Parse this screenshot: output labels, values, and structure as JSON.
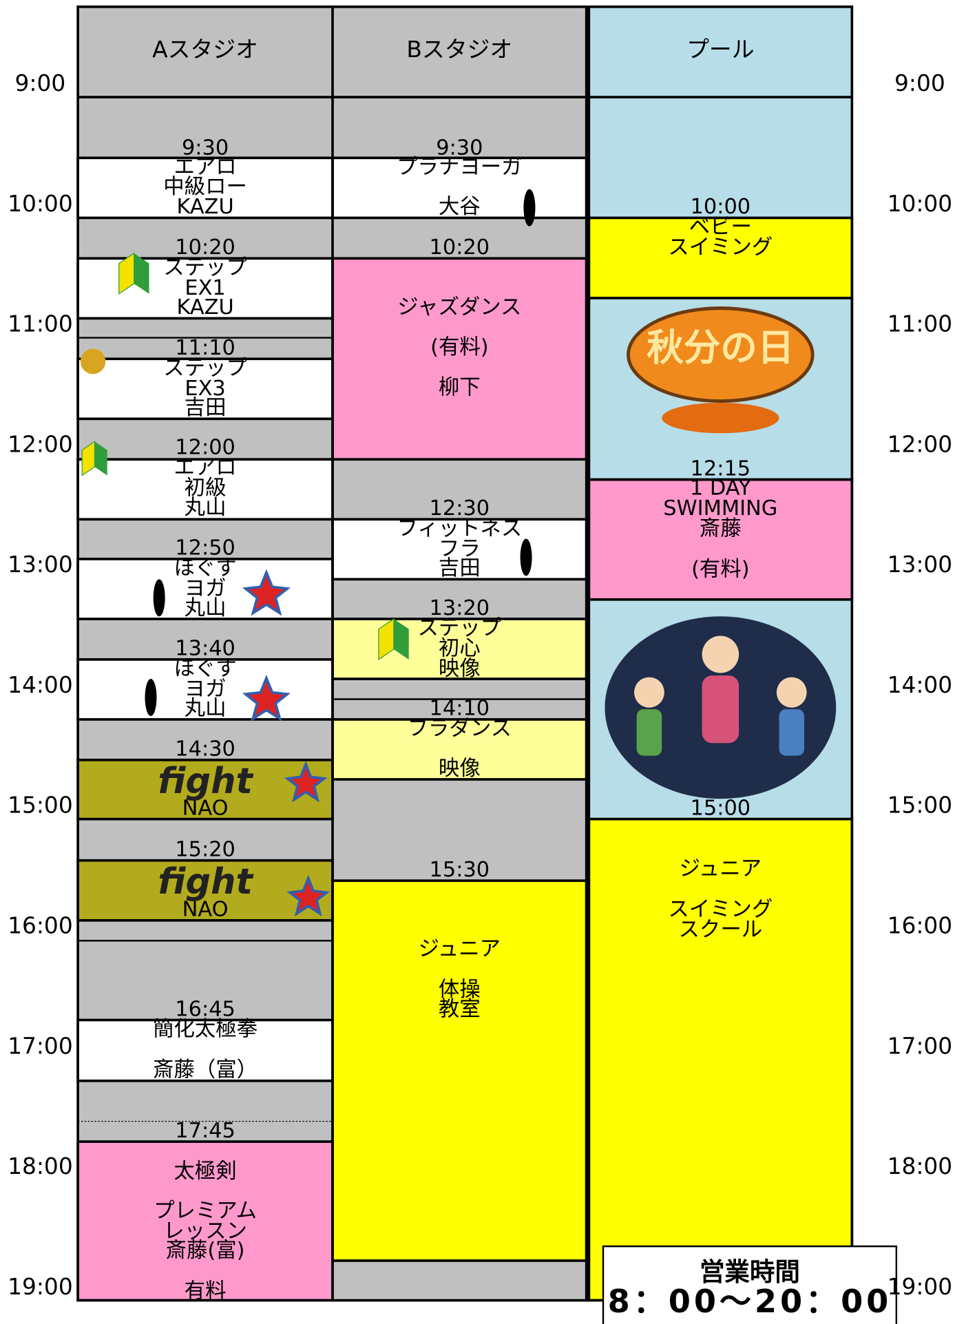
{
  "columns": [
    "Aスタジオ",
    "Bスタジオ",
    "プール"
  ],
  "times": [
    "9:00",
    "10:00",
    "11:00",
    "12:00",
    "13:00",
    "14:00",
    "15:00",
    "16:00",
    "17:00",
    "18:00",
    "19:00"
  ],
  "sessions": [
    [
      {
        "time": "9:30",
        "lines": [
          "エアロ",
          "中級ロー",
          "KAZU"
        ]
      },
      {
        "time": "10:20",
        "lines": [
          "ステップ",
          "EX1",
          "KAZU"
        ]
      },
      {
        "time": "11:10",
        "lines": [
          "ステップ",
          "EX3",
          "吉田"
        ]
      },
      {
        "time": "12:00",
        "lines": [
          "エアロ",
          "初級",
          "丸山"
        ]
      },
      {
        "time": "12:50",
        "lines": [
          "ほぐす",
          "ヨガ",
          "丸山"
        ]
      },
      {
        "time": "13:40",
        "lines": [
          "ほぐす",
          "ヨガ",
          "丸山"
        ]
      },
      {
        "time": "14:30",
        "logo": "fight",
        "lines": [
          "NAO"
        ]
      },
      {
        "time": "15:20",
        "logo": "fight",
        "lines": [
          "NAO"
        ]
      },
      {
        "time": "16:45",
        "lines": [
          "簡化太極拳",
          "斎藤（富）"
        ]
      },
      {
        "time": "17:45",
        "lines": [
          "太極剣",
          "プレミアム",
          "レッスン",
          "斎藤(富)",
          "有料"
        ]
      }
    ],
    [
      {
        "time": "9:30",
        "lines": [
          "プラナヨーガ",
          "大谷"
        ]
      },
      {
        "time": "10:20",
        "lines": [
          "ジャズダンス",
          "(有料)",
          "柳下"
        ]
      },
      {
        "time": "12:30",
        "lines": [
          "フィットネス",
          "フラ",
          "吉田"
        ]
      },
      {
        "time": "13:20",
        "lines": [
          "ステップ",
          "初心",
          "映像"
        ]
      },
      {
        "time": "14:10",
        "lines": [
          "フラダンス",
          "映像"
        ]
      },
      {
        "time": "15:30",
        "lines": [
          "ジュニア",
          "体操",
          "教室"
        ]
      }
    ],
    [
      {
        "time": "10:00",
        "lines": [
          "ベビー",
          "スイミング"
        ]
      },
      {
        "lines": [
          "秋分の日"
        ]
      },
      {
        "time": "12:15",
        "lines": [
          "1 DAY",
          "SWIMMING",
          "斎藤",
          "(有料)"
        ]
      },
      {
        "time": "15:00",
        "lines": [
          "ジュニア",
          "スイミング",
          "スクール"
        ]
      }
    ]
  ],
  "hours": {
    "label": "営業時間",
    "value": "8：00〜20：00"
  }
}
